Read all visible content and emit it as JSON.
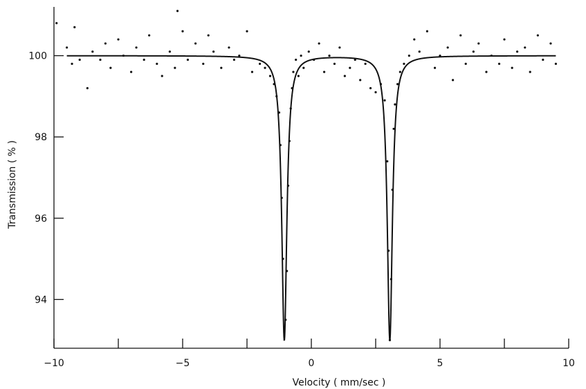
{
  "chart_data": {
    "type": "scatter",
    "title": "",
    "xlabel": "Velocity   ( mm/sec )",
    "ylabel": "Transmission  ( % )",
    "xlim": [
      -10,
      10
    ],
    "ylim": [
      92.8,
      101.2
    ],
    "x_ticks": [
      -10,
      -5,
      0,
      5,
      10
    ],
    "x_minor_ticks": [
      -7.5,
      -2.5,
      2.5,
      7.5
    ],
    "y_ticks": [
      94,
      96,
      98,
      100
    ],
    "grid": false,
    "legend": "none",
    "baseline": 100.0,
    "peaks": [
      {
        "center": -1.05,
        "min_transmission": 93.0
      },
      {
        "center": 3.05,
        "min_transmission": 93.0
      }
    ],
    "series": [
      {
        "kind": "measured points",
        "x": [
          -9.9,
          -9.5,
          -9.3,
          -9.2,
          -9.0,
          -8.7,
          -8.5,
          -8.2,
          -8.0,
          -7.8,
          -7.5,
          -7.3,
          -7.0,
          -6.8,
          -6.5,
          -6.3,
          -6.0,
          -5.8,
          -5.5,
          -5.3,
          -5.2,
          -5.0,
          -4.8,
          -4.5,
          -4.2,
          -4.0,
          -3.8,
          -3.5,
          -3.2,
          -3.0,
          -2.8,
          -2.5,
          -2.3,
          -2.0,
          -1.8,
          -1.6,
          -1.45,
          -1.35,
          -1.25,
          -1.2,
          -1.15,
          -1.1,
          -1.05,
          -1.0,
          -0.95,
          -0.9,
          -0.85,
          -0.8,
          -0.75,
          -0.7,
          -0.6,
          -0.5,
          -0.4,
          -0.3,
          -0.1,
          0.1,
          0.3,
          0.5,
          0.7,
          0.9,
          1.1,
          1.3,
          1.5,
          1.7,
          1.9,
          2.1,
          2.3,
          2.5,
          2.7,
          2.85,
          2.95,
          3.0,
          3.05,
          3.1,
          3.15,
          3.2,
          3.25,
          3.35,
          3.45,
          3.6,
          3.8,
          4.0,
          4.2,
          4.5,
          4.8,
          5.0,
          5.3,
          5.5,
          5.8,
          6.0,
          6.3,
          6.5,
          6.8,
          7.0,
          7.3,
          7.5,
          7.8,
          8.0,
          8.3,
          8.5,
          8.8,
          9.0,
          9.3,
          9.5
        ],
        "y": [
          100.8,
          100.2,
          99.8,
          100.7,
          99.9,
          99.2,
          100.1,
          99.9,
          100.3,
          99.7,
          100.4,
          100.0,
          99.6,
          100.2,
          99.9,
          100.5,
          99.8,
          99.5,
          100.1,
          99.7,
          101.1,
          100.6,
          99.9,
          100.3,
          99.8,
          100.5,
          100.1,
          99.7,
          100.2,
          99.9,
          100.0,
          100.6,
          99.6,
          99.8,
          99.7,
          99.5,
          99.3,
          99.0,
          98.6,
          97.8,
          96.5,
          95.0,
          93.2,
          93.5,
          94.7,
          96.8,
          97.9,
          98.7,
          99.2,
          99.6,
          99.9,
          99.5,
          100.0,
          99.7,
          100.1,
          99.9,
          100.3,
          99.6,
          100.0,
          99.8,
          100.2,
          99.5,
          99.7,
          99.9,
          99.4,
          99.8,
          99.2,
          99.1,
          99.3,
          98.9,
          97.4,
          95.2,
          93.0,
          94.5,
          96.7,
          98.2,
          98.8,
          99.3,
          99.6,
          99.8,
          100.0,
          100.4,
          100.1,
          100.6,
          99.7,
          100.0,
          100.2,
          99.4,
          100.5,
          99.8,
          100.1,
          100.3,
          99.6,
          100.0,
          99.8,
          100.4,
          99.7,
          100.1,
          100.2,
          99.6,
          100.5,
          99.9,
          100.3,
          99.8
        ]
      },
      {
        "kind": "fitted curve",
        "model": "two Lorentzian absorption lines",
        "depth": 7.0,
        "half_width": 0.12
      }
    ]
  }
}
